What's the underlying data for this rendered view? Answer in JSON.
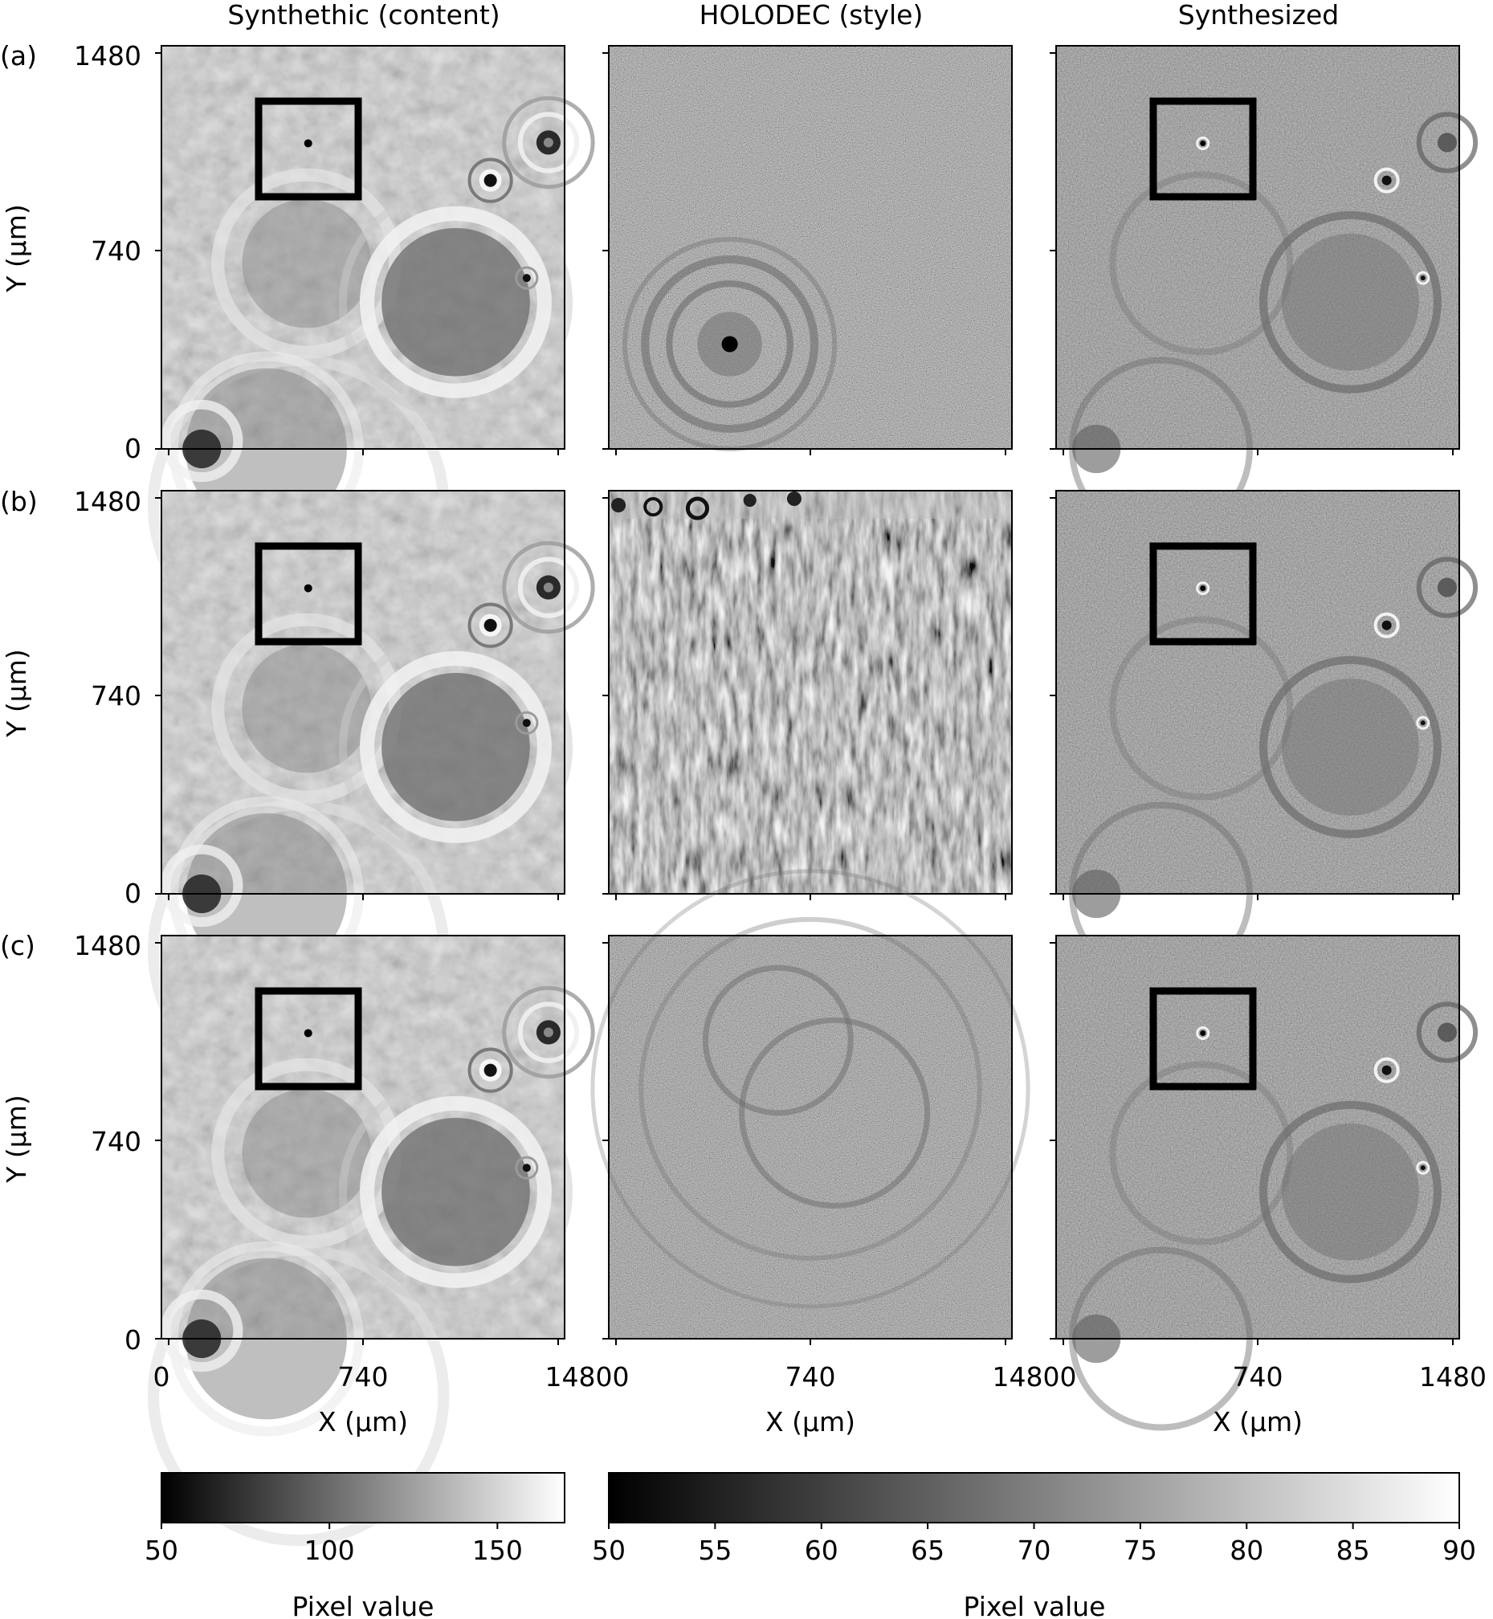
{
  "columns": [
    {
      "title": "Synthethic (content)"
    },
    {
      "title": "HOLODEC (style)"
    },
    {
      "title": "Synthesized"
    }
  ],
  "rows": [
    {
      "label": "(a)"
    },
    {
      "label": "(b)"
    },
    {
      "label": "(c)"
    }
  ],
  "axes": {
    "y_label": "Y (μm)",
    "x_label": "X (μm)",
    "y_ticks": [
      "1480",
      "740",
      "0"
    ],
    "x_ticks_first": [
      "0",
      "740"
    ],
    "x_tick_merged_1": "14800",
    "x_tick_merged_2": "14800",
    "x_ticks_last": [
      "740",
      "1480"
    ]
  },
  "colorbars": [
    {
      "label": "Pixel value",
      "min": 50,
      "max": 170,
      "ticks": [
        "50",
        "100",
        "150"
      ],
      "tick_values": [
        50,
        100,
        150
      ]
    },
    {
      "label": "Pixel value",
      "min": 50,
      "max": 90,
      "ticks": [
        "50",
        "55",
        "60",
        "65",
        "70",
        "75",
        "80",
        "85",
        "90"
      ],
      "tick_values": [
        50,
        55,
        60,
        65,
        70,
        75,
        80,
        85,
        90
      ]
    }
  ],
  "colors": {
    "colormap_low": "#000000",
    "colormap_high": "#ffffff"
  }
}
